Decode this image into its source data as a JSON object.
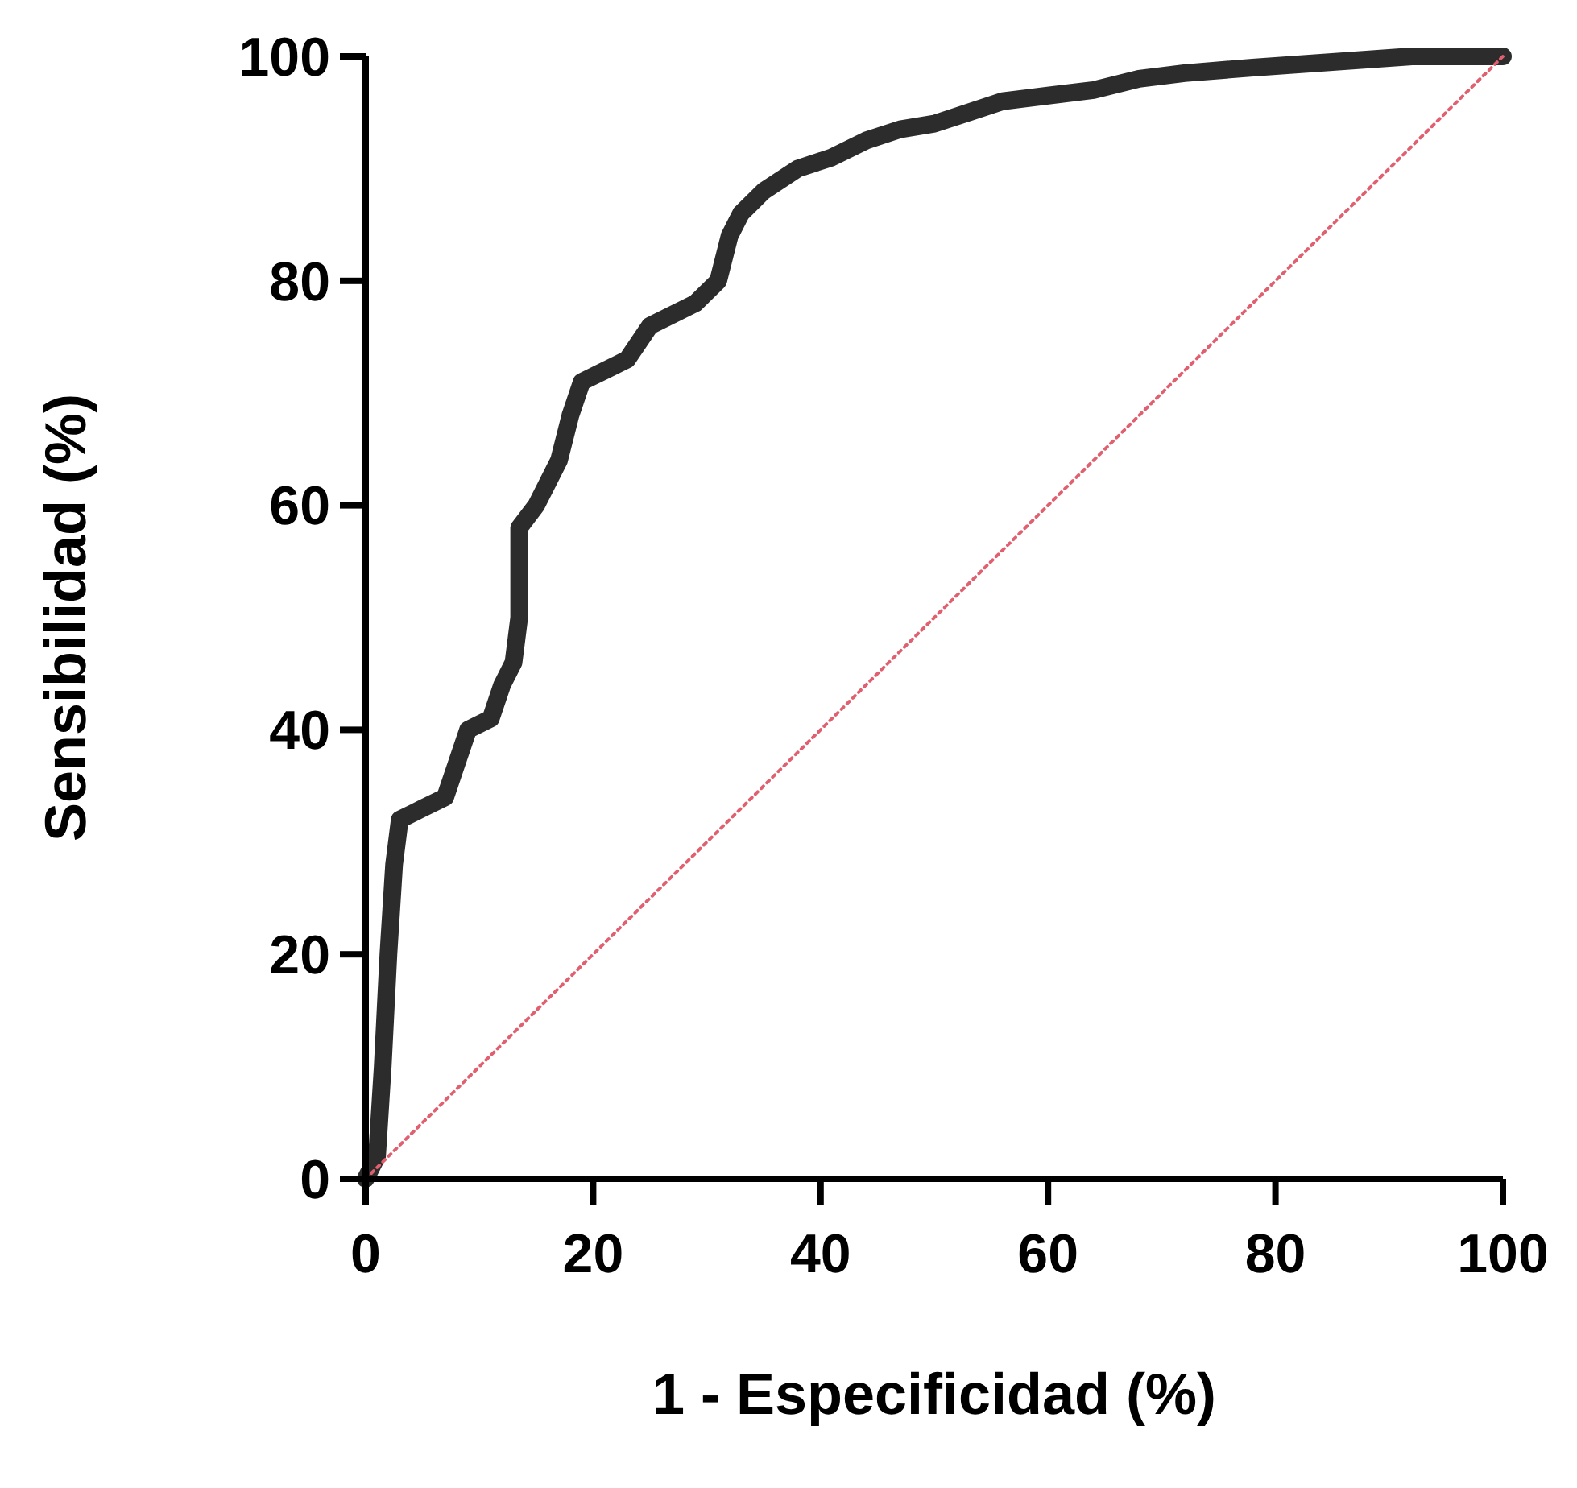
{
  "chart_data": {
    "type": "line",
    "xlabel": "1 - Especificidad (%)",
    "ylabel": "Sensibilidad (%)",
    "xlim": [
      0,
      100
    ],
    "ylim": [
      0,
      100
    ],
    "xticks": [
      0,
      20,
      40,
      60,
      80,
      100
    ],
    "yticks": [
      0,
      20,
      40,
      60,
      80,
      100
    ],
    "grid": false,
    "series": [
      {
        "color": "#1a1a1a",
        "line_style": "solid",
        "x": [
          0,
          1,
          1.5,
          2,
          2.5,
          3,
          5,
          7,
          8,
          9,
          11,
          12,
          13,
          13.5,
          13.5,
          15,
          17,
          18,
          19,
          21,
          23,
          25,
          27,
          29,
          31,
          32,
          33,
          35,
          38,
          41,
          44,
          47,
          50,
          53,
          56,
          60,
          64,
          68,
          72,
          78,
          85,
          92,
          100
        ],
        "values": [
          0,
          2,
          10,
          20,
          28,
          32,
          33,
          34,
          37,
          40,
          41,
          44,
          46,
          50,
          58,
          60,
          64,
          68,
          71,
          72,
          73,
          76,
          77,
          78,
          80,
          84,
          86,
          88,
          90,
          91,
          92.5,
          93.5,
          94,
          95,
          96,
          96.5,
          97,
          98,
          98.5,
          99,
          99.5,
          100,
          100
        ]
      },
      {
        "color": "#e06070",
        "line_style": "dotted",
        "x": [
          0,
          100
        ],
        "values": [
          0,
          100
        ]
      }
    ]
  }
}
